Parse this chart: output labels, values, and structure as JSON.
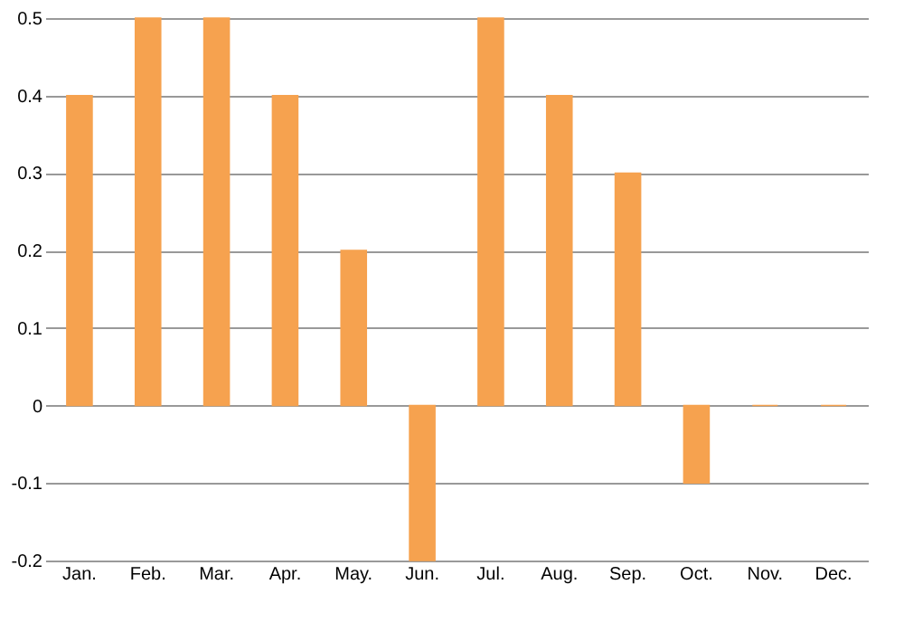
{
  "chart_data": {
    "type": "bar",
    "categories": [
      "Jan.",
      "Feb.",
      "Mar.",
      "Apr.",
      "May.",
      "Jun.",
      "Jul.",
      "Aug.",
      "Sep.",
      "Oct.",
      "Nov.",
      "Dec."
    ],
    "values": [
      0.4,
      0.5,
      0.5,
      0.4,
      0.2,
      -0.2,
      0.5,
      0.4,
      0.3,
      -0.1,
      0,
      0
    ],
    "color": "#f6a24f",
    "ylim": [
      -0.2,
      0.5
    ],
    "yticks": [
      -0.2,
      -0.1,
      0,
      0.1,
      0.2,
      0.3,
      0.4,
      0.5
    ],
    "grid": "y"
  }
}
